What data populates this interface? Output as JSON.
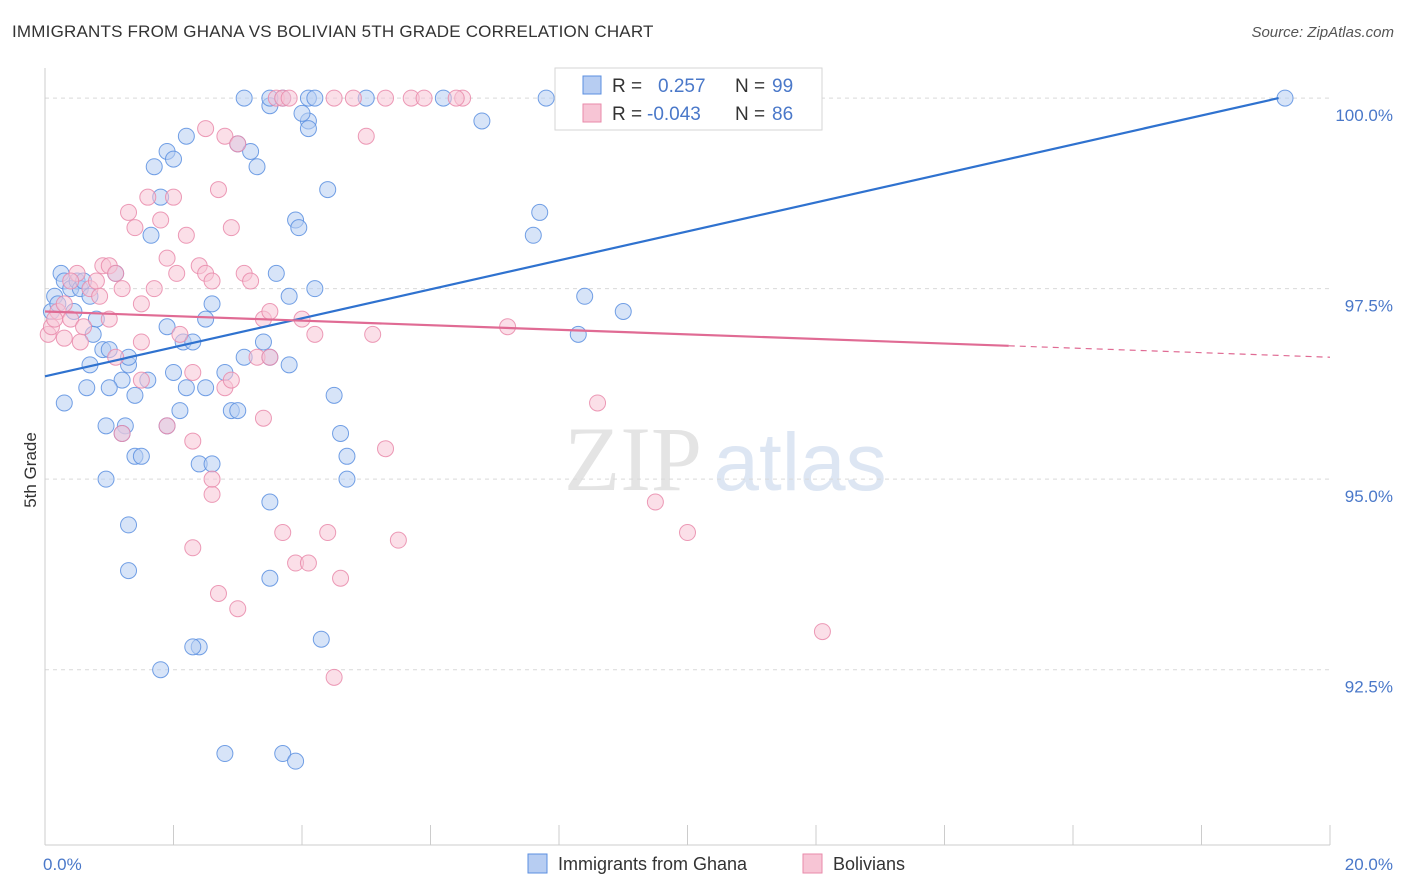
{
  "title": "IMMIGRANTS FROM GHANA VS BOLIVIAN 5TH GRADE CORRELATION CHART",
  "source": "Source: ZipAtlas.com",
  "watermark": {
    "zip": "ZIP",
    "atlas": "atlas"
  },
  "colors": {
    "blue": "#5b8fe0",
    "blue_fill": "#b7cdf2",
    "blue_line": "#2f72cf",
    "pink": "#e98aaa",
    "pink_fill": "#f7c5d5",
    "pink_line": "#e06b94",
    "tick_text": "#4a78c9",
    "grid": "#d9d9d9"
  },
  "legend_top": {
    "rows": [
      {
        "r_label": "R =",
        "r_value": "0.257",
        "n_label": "N =",
        "n_value": "99"
      },
      {
        "r_label": "R =",
        "r_value": "-0.043",
        "n_label": "N =",
        "n_value": "86"
      }
    ]
  },
  "legend_bottom": [
    {
      "label": "Immigrants from Ghana"
    },
    {
      "label": "Bolivians"
    }
  ],
  "chart_data": {
    "type": "scatter",
    "title": "IMMIGRANTS FROM GHANA VS BOLIVIAN 5TH GRADE CORRELATION CHART",
    "xlabel": "",
    "ylabel": "5th Grade",
    "xlim": [
      0,
      20
    ],
    "ylim": [
      90.2,
      100.5
    ],
    "x_tick_labels": [
      "0.0%",
      "20.0%"
    ],
    "y_ticks": [
      92.5,
      95.0,
      97.5,
      100.0
    ],
    "y_tick_labels": [
      "92.5%",
      "95.0%",
      "97.5%",
      "100.0%"
    ],
    "grid": true,
    "legend_position": "top-center",
    "series": [
      {
        "name": "Immigrants from Ghana",
        "r": 0.257,
        "n": 99,
        "trend": {
          "x": [
            0,
            19.2
          ],
          "y": [
            96.35,
            100.0
          ]
        },
        "points": [
          [
            0.1,
            97.2
          ],
          [
            0.15,
            97.4
          ],
          [
            0.2,
            97.3
          ],
          [
            0.25,
            97.7
          ],
          [
            0.3,
            97.6
          ],
          [
            0.4,
            97.5
          ],
          [
            0.45,
            97.2
          ],
          [
            0.5,
            97.6
          ],
          [
            0.55,
            97.5
          ],
          [
            0.3,
            96.0
          ],
          [
            0.6,
            97.6
          ],
          [
            0.7,
            97.4
          ],
          [
            0.8,
            97.1
          ],
          [
            0.75,
            96.9
          ],
          [
            0.7,
            96.5
          ],
          [
            0.65,
            96.2
          ],
          [
            0.9,
            96.7
          ],
          [
            0.95,
            95.7
          ],
          [
            0.95,
            95.0
          ],
          [
            1.0,
            96.7
          ],
          [
            1.1,
            97.7
          ],
          [
            1.2,
            96.3
          ],
          [
            1.3,
            96.5
          ],
          [
            1.25,
            95.7
          ],
          [
            1.2,
            95.6
          ],
          [
            1.3,
            96.6
          ],
          [
            1.4,
            95.3
          ],
          [
            1.4,
            96.1
          ],
          [
            1.5,
            95.3
          ],
          [
            1.6,
            96.3
          ],
          [
            1.65,
            98.2
          ],
          [
            1.7,
            99.1
          ],
          [
            1.8,
            98.7
          ],
          [
            1.9,
            99.3
          ],
          [
            2.0,
            99.2
          ],
          [
            2.2,
            99.5
          ],
          [
            2.0,
            96.4
          ],
          [
            2.1,
            95.9
          ],
          [
            1.9,
            95.7
          ],
          [
            2.15,
            96.8
          ],
          [
            2.2,
            96.2
          ],
          [
            2.3,
            96.8
          ],
          [
            2.4,
            95.2
          ],
          [
            2.5,
            96.2
          ],
          [
            2.6,
            95.2
          ],
          [
            2.6,
            97.3
          ],
          [
            2.8,
            96.4
          ],
          [
            2.9,
            95.9
          ],
          [
            3.0,
            95.9
          ],
          [
            3.1,
            96.6
          ],
          [
            3.0,
            99.4
          ],
          [
            3.2,
            99.3
          ],
          [
            3.3,
            99.1
          ],
          [
            3.4,
            96.8
          ],
          [
            3.5,
            96.6
          ],
          [
            3.6,
            97.7
          ],
          [
            3.8,
            96.5
          ],
          [
            3.8,
            97.4
          ],
          [
            3.9,
            98.4
          ],
          [
            3.95,
            98.3
          ],
          [
            4.1,
            99.7
          ],
          [
            4.2,
            97.5
          ],
          [
            4.4,
            98.8
          ],
          [
            4.5,
            96.1
          ],
          [
            4.6,
            95.6
          ],
          [
            4.7,
            95.3
          ],
          [
            4.7,
            95.0
          ],
          [
            3.5,
            99.9
          ],
          [
            3.7,
            100.0
          ],
          [
            4.0,
            99.8
          ],
          [
            4.1,
            99.6
          ],
          [
            1.3,
            94.4
          ],
          [
            1.3,
            93.8
          ],
          [
            2.4,
            92.8
          ],
          [
            2.8,
            91.4
          ],
          [
            2.3,
            92.8
          ],
          [
            1.8,
            92.5
          ],
          [
            3.7,
            91.4
          ],
          [
            3.9,
            91.3
          ],
          [
            4.3,
            92.9
          ],
          [
            5.0,
            100.0
          ],
          [
            6.2,
            100.0
          ],
          [
            6.8,
            99.7
          ],
          [
            7.6,
            98.2
          ],
          [
            7.7,
            98.5
          ],
          [
            7.8,
            100.0
          ],
          [
            8.3,
            96.9
          ],
          [
            8.4,
            97.4
          ],
          [
            9.0,
            97.2
          ],
          [
            3.1,
            100.0
          ],
          [
            3.5,
            100.0
          ],
          [
            4.1,
            100.0
          ],
          [
            4.2,
            100.0
          ],
          [
            19.3,
            100.0
          ],
          [
            3.5,
            94.7
          ],
          [
            3.5,
            93.7
          ],
          [
            2.5,
            97.1
          ],
          [
            1.9,
            97.0
          ],
          [
            1.0,
            96.2
          ]
        ]
      },
      {
        "name": "Bolivians",
        "r": -0.043,
        "n": 86,
        "trend": {
          "x": [
            0,
            15.0
          ],
          "y": [
            97.2,
            96.75
          ]
        },
        "trend_dashed": {
          "x": [
            15.0,
            20.0
          ],
          "y": [
            96.75,
            96.6
          ]
        },
        "points": [
          [
            0.05,
            96.9
          ],
          [
            0.1,
            97.0
          ],
          [
            0.2,
            97.2
          ],
          [
            0.3,
            97.3
          ],
          [
            0.4,
            97.1
          ],
          [
            0.5,
            97.7
          ],
          [
            0.55,
            96.8
          ],
          [
            0.6,
            97.0
          ],
          [
            0.7,
            97.5
          ],
          [
            0.8,
            97.6
          ],
          [
            0.85,
            97.4
          ],
          [
            0.9,
            97.8
          ],
          [
            1.0,
            97.8
          ],
          [
            1.1,
            97.7
          ],
          [
            1.2,
            97.5
          ],
          [
            1.3,
            98.5
          ],
          [
            1.4,
            98.3
          ],
          [
            1.5,
            97.3
          ],
          [
            1.5,
            96.3
          ],
          [
            1.6,
            98.7
          ],
          [
            1.7,
            97.5
          ],
          [
            1.8,
            98.4
          ],
          [
            1.9,
            97.9
          ],
          [
            2.0,
            98.7
          ],
          [
            2.05,
            97.7
          ],
          [
            2.1,
            96.9
          ],
          [
            2.2,
            98.2
          ],
          [
            2.3,
            96.4
          ],
          [
            2.4,
            97.8
          ],
          [
            2.5,
            97.7
          ],
          [
            2.5,
            99.6
          ],
          [
            2.6,
            97.6
          ],
          [
            2.7,
            98.8
          ],
          [
            2.8,
            99.5
          ],
          [
            2.9,
            98.3
          ],
          [
            3.0,
            99.4
          ],
          [
            3.1,
            97.7
          ],
          [
            3.2,
            97.6
          ],
          [
            3.3,
            96.6
          ],
          [
            3.4,
            97.1
          ],
          [
            3.5,
            97.2
          ],
          [
            3.6,
            100.0
          ],
          [
            3.7,
            100.0
          ],
          [
            3.8,
            100.0
          ],
          [
            4.0,
            97.1
          ],
          [
            4.2,
            96.9
          ],
          [
            4.5,
            100.0
          ],
          [
            4.8,
            100.0
          ],
          [
            5.0,
            99.5
          ],
          [
            5.1,
            96.9
          ],
          [
            5.3,
            100.0
          ],
          [
            5.7,
            100.0
          ],
          [
            5.9,
            100.0
          ],
          [
            6.5,
            100.0
          ],
          [
            7.2,
            97.0
          ],
          [
            1.2,
            95.6
          ],
          [
            1.9,
            95.7
          ],
          [
            2.3,
            95.5
          ],
          [
            2.6,
            94.8
          ],
          [
            2.8,
            96.2
          ],
          [
            3.4,
            95.8
          ],
          [
            3.7,
            94.3
          ],
          [
            3.9,
            93.9
          ],
          [
            4.1,
            93.9
          ],
          [
            4.4,
            94.3
          ],
          [
            4.6,
            93.7
          ],
          [
            5.3,
            95.4
          ],
          [
            5.5,
            94.2
          ],
          [
            2.3,
            94.1
          ],
          [
            2.7,
            93.5
          ],
          [
            3.0,
            93.3
          ],
          [
            4.5,
            92.4
          ],
          [
            8.6,
            96.0
          ],
          [
            9.5,
            94.7
          ],
          [
            10.0,
            94.3
          ],
          [
            12.1,
            93.0
          ],
          [
            2.6,
            95.0
          ],
          [
            1.1,
            96.6
          ],
          [
            0.4,
            97.6
          ],
          [
            1.5,
            96.8
          ],
          [
            2.9,
            96.3
          ],
          [
            3.5,
            96.6
          ],
          [
            0.3,
            96.85
          ],
          [
            0.15,
            97.1
          ],
          [
            6.4,
            100.0
          ],
          [
            1.0,
            97.1
          ]
        ]
      }
    ]
  }
}
